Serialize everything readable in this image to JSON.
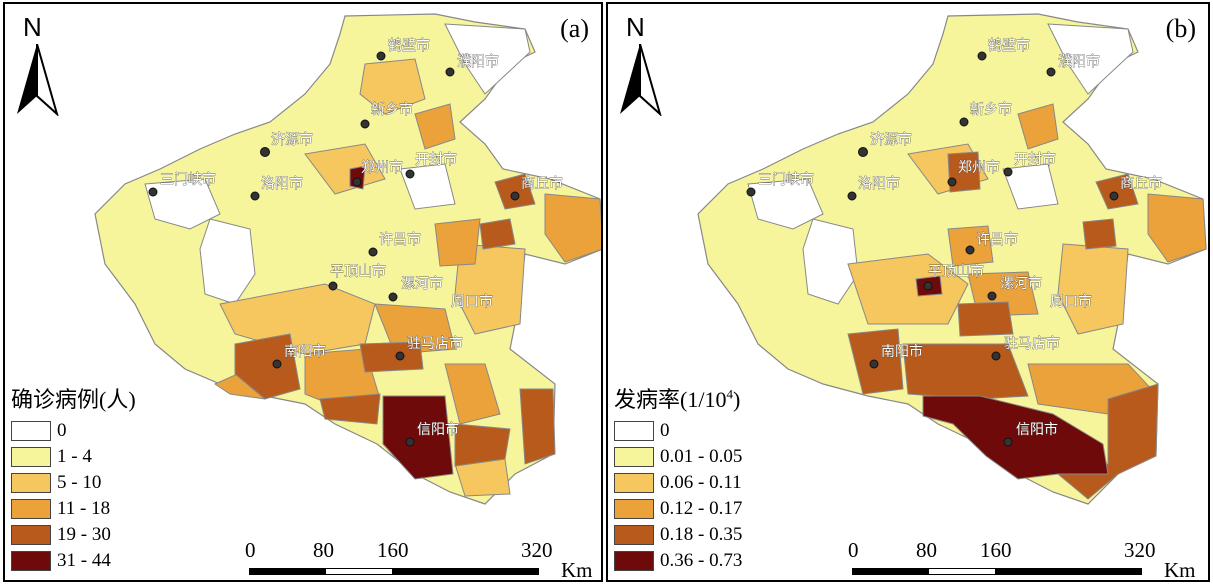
{
  "panels": [
    {
      "tag": "(a)",
      "north_label": "N",
      "legend": {
        "title": "确诊病例(人)",
        "items": [
          {
            "label": "0",
            "color": "#ffffff"
          },
          {
            "label": "1 - 4",
            "color": "#f7f59c"
          },
          {
            "label": "5 - 10",
            "color": "#f5c75e"
          },
          {
            "label": "11 - 18",
            "color": "#eba23a"
          },
          {
            "label": "19 - 30",
            "color": "#b85a1c"
          },
          {
            "label": "31 - 44",
            "color": "#6e0a0a"
          }
        ]
      },
      "scale": {
        "ticks": [
          "0",
          "80",
          "160",
          "320"
        ],
        "unit": "Km"
      },
      "cities": [
        "鹤壁市",
        "濮阳市",
        "新乡市",
        "济源市",
        "郑州市",
        "开封市",
        "三门峡市",
        "洛阳市",
        "商丘市",
        "许昌市",
        "平顶山市",
        "漯河市",
        "周口市",
        "南阳市",
        "驻马店市",
        "信阳市"
      ]
    },
    {
      "tag": "(b)",
      "north_label": "N",
      "legend": {
        "title": "发病率(1/10",
        "title_sup": "4",
        "title_end": ")",
        "items": [
          {
            "label": "0",
            "color": "#ffffff"
          },
          {
            "label": "0.01 - 0.05",
            "color": "#f7f59c"
          },
          {
            "label": "0.06 - 0.11",
            "color": "#f5c75e"
          },
          {
            "label": "0.12 - 0.17",
            "color": "#eba23a"
          },
          {
            "label": "0.18 - 0.35",
            "color": "#b85a1c"
          },
          {
            "label": "0.36 - 0.73",
            "color": "#6e0a0a"
          }
        ]
      },
      "scale": {
        "ticks": [
          "0",
          "80",
          "160",
          "320"
        ],
        "unit": "Km"
      },
      "cities": [
        "鹤壁市",
        "濮阳市",
        "新乡市",
        "济源市",
        "郑州市",
        "开封市",
        "三门峡市",
        "洛阳市",
        "商丘市",
        "许昌市",
        "平顶山市",
        "漯河市",
        "周口市",
        "南阳市",
        "驻马店市",
        "信阳市"
      ]
    }
  ]
}
